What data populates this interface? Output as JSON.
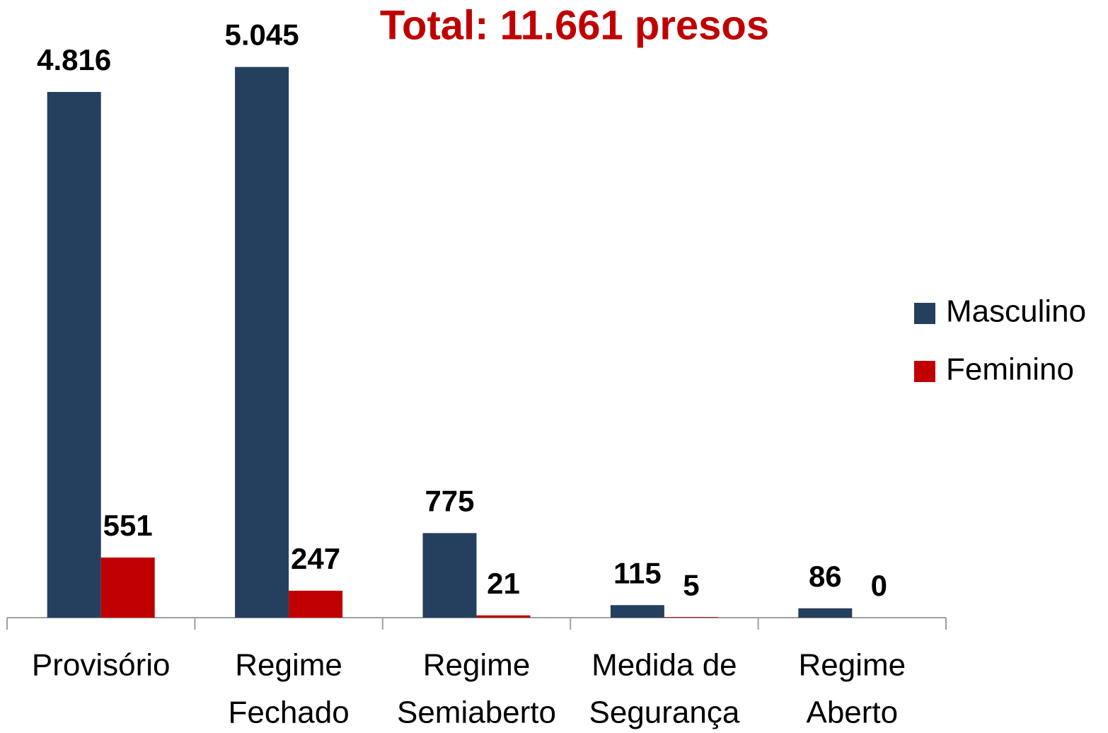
{
  "chart_data": {
    "type": "bar",
    "title": "Total: 11.661 presos",
    "categories": [
      [
        "Provisório"
      ],
      [
        "Regime",
        "Fechado"
      ],
      [
        "Regime",
        "Semiaberto"
      ],
      [
        "Medida de",
        "Segurança"
      ],
      [
        "Regime",
        "Aberto"
      ]
    ],
    "series": [
      {
        "name": "Masculino",
        "color": "#253f5f",
        "values": [
          4816,
          5045,
          775,
          115,
          86
        ],
        "value_labels": [
          "4.816",
          "5.045",
          "775",
          "115",
          "86"
        ]
      },
      {
        "name": "Feminino",
        "color": "#c00000",
        "values": [
          551,
          247,
          21,
          5,
          0
        ],
        "value_labels": [
          "551",
          "247",
          "21",
          "5",
          "0"
        ]
      }
    ],
    "ylim": [
      0,
      5600
    ],
    "legend": "right"
  }
}
